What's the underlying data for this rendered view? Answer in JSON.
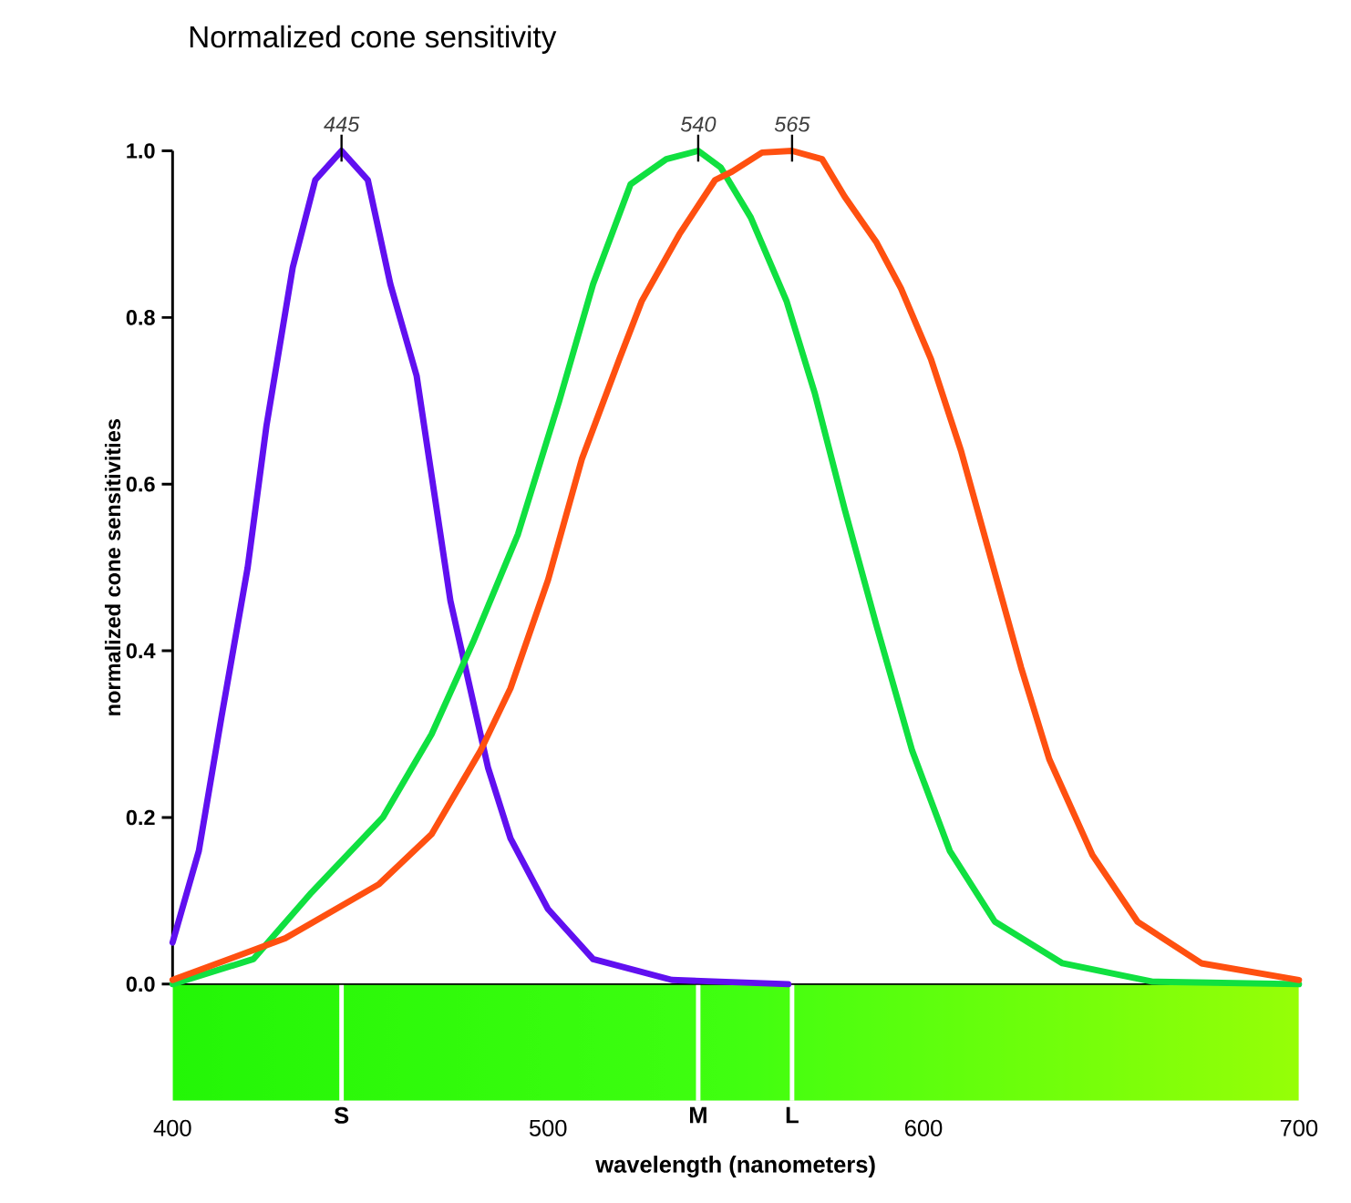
{
  "chart_data": {
    "type": "line",
    "title": "Normalized cone sensitivity",
    "xlabel": "wavelength (nanometers)",
    "ylabel": "normalized cone sensitivities",
    "xlim": [
      400,
      700
    ],
    "ylim": [
      0,
      1
    ],
    "xticks": [
      400,
      500,
      600,
      700
    ],
    "yticks": [
      {
        "value": 0,
        "label": "0.0"
      },
      {
        "value": 0.2,
        "label": "0.2"
      },
      {
        "value": 0.4,
        "label": "0.4"
      },
      {
        "value": 0.6,
        "label": "0.6"
      },
      {
        "value": 0.8,
        "label": "0.8"
      },
      {
        "value": 1,
        "label": "1.0"
      }
    ],
    "series": [
      {
        "color": "#6010f0",
        "x": [
          400,
          407,
          413,
          420,
          425,
          432,
          438,
          445,
          452,
          458,
          465,
          469,
          474,
          479,
          484,
          490,
          500,
          512,
          533,
          564
        ],
        "values": [
          0.05,
          0.16,
          0.32,
          0.5,
          0.67,
          0.86,
          0.965,
          1.0,
          0.965,
          0.84,
          0.73,
          0.61,
          0.46,
          0.36,
          0.26,
          0.175,
          0.09,
          0.03,
          0.005,
          0
        ]
      },
      {
        "color": "#10e040",
        "x": [
          400,
          421.5,
          437,
          456,
          469,
          480,
          492,
          503,
          512,
          522,
          531.5,
          540,
          546,
          554,
          563.5,
          571,
          579,
          587.5,
          597,
          607,
          619,
          637,
          661,
          700
        ],
        "values": [
          0,
          0.03,
          0.11,
          0.2,
          0.3,
          0.41,
          0.54,
          0.7,
          0.84,
          0.96,
          0.99,
          1.0,
          0.98,
          0.92,
          0.82,
          0.71,
          0.57,
          0.43,
          0.28,
          0.16,
          0.075,
          0.025,
          0.003,
          0
        ]
      },
      {
        "color": "#ff5010",
        "x": [
          400,
          430,
          455,
          469,
          482,
          490,
          500,
          509,
          519,
          525,
          535,
          544.5,
          549,
          557,
          565,
          573,
          579,
          587.5,
          594,
          602,
          610,
          618,
          626,
          633.5,
          645,
          657,
          674,
          700
        ],
        "values": [
          0.005,
          0.055,
          0.12,
          0.18,
          0.28,
          0.355,
          0.485,
          0.63,
          0.75,
          0.82,
          0.9,
          0.965,
          0.975,
          0.998,
          1.0,
          0.99,
          0.945,
          0.89,
          0.835,
          0.75,
          0.64,
          0.51,
          0.38,
          0.27,
          0.155,
          0.075,
          0.025,
          0.005
        ]
      }
    ],
    "annotations": [
      {
        "text": "445",
        "x": 445,
        "y": 1
      },
      {
        "text": "540",
        "x": 540,
        "y": 1
      },
      {
        "text": "565",
        "x": 565,
        "y": 1
      },
      "S",
      "M",
      "L"
    ]
  }
}
